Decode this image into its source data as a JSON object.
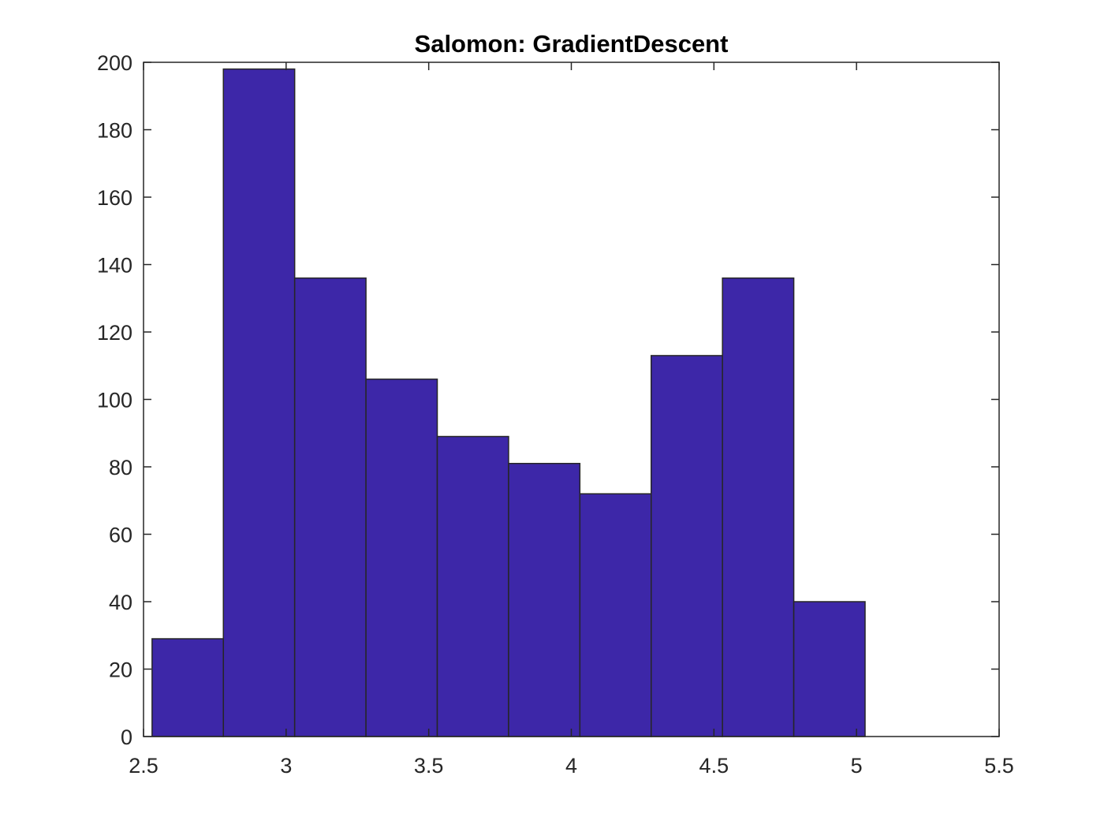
{
  "chart_data": {
    "type": "bar",
    "title": "Salomon: GradientDescent",
    "xlabel": "",
    "ylabel": "",
    "xlim": [
      2.5,
      5.5
    ],
    "ylim": [
      0,
      200
    ],
    "xticks": [
      "2.5",
      "3",
      "3.5",
      "4",
      "4.5",
      "5",
      "5.5"
    ],
    "yticks": [
      "0",
      "20",
      "40",
      "60",
      "80",
      "100",
      "120",
      "140",
      "160",
      "180",
      "200"
    ],
    "bin_edges": [
      2.53,
      2.78,
      3.03,
      3.28,
      3.53,
      3.78,
      4.03,
      4.28,
      4.53,
      4.78,
      5.03
    ],
    "values": [
      29,
      198,
      136,
      106,
      89,
      81,
      72,
      113,
      136,
      40
    ],
    "grid": false,
    "bar_color": "#3D27A8",
    "edge_color": "#262626"
  }
}
